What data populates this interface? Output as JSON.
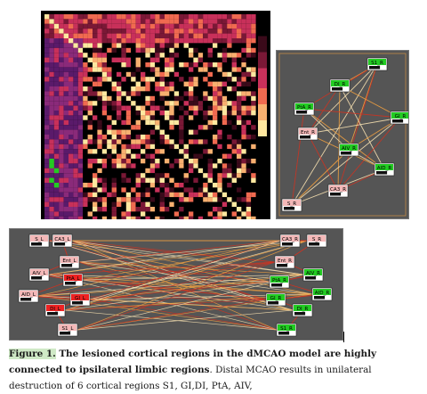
{
  "colors": {
    "panel_bg": "#555555",
    "node_green": "#22cc22",
    "node_red": "#ee2222",
    "node_pink": "#f4b8b8",
    "edge_orange": "#f0a040",
    "edge_red": "#cc3322",
    "edge_cream": "#f6e0b0",
    "matrix_low": "#000000",
    "matrix_mid": "#c8305a",
    "matrix_high": "#ffe8a0",
    "matrix_purple": "#5a1a6a"
  },
  "right_network": {
    "nodes": [
      {
        "label": "S1_R",
        "color": "green"
      },
      {
        "label": "DI_R",
        "color": "green"
      },
      {
        "label": "PtA_R",
        "color": "green"
      },
      {
        "label": "GI_R",
        "color": "green"
      },
      {
        "label": "Ent_R",
        "color": "pink"
      },
      {
        "label": "AIV_R",
        "color": "green"
      },
      {
        "label": "AID_R",
        "color": "green"
      },
      {
        "label": "CA3_R",
        "color": "pink"
      },
      {
        "label": "S_R",
        "color": "pink"
      }
    ]
  },
  "bottom_network": {
    "left_nodes": [
      {
        "label": "S_L",
        "color": "pink"
      },
      {
        "label": "CA3_L",
        "color": "pink"
      },
      {
        "label": "Ent_L",
        "color": "pink"
      },
      {
        "label": "AIV_L",
        "color": "pink"
      },
      {
        "label": "PtA_L",
        "color": "red"
      },
      {
        "label": "AID_L",
        "color": "pink"
      },
      {
        "label": "GI_L",
        "color": "red"
      },
      {
        "label": "DI_L",
        "color": "red"
      },
      {
        "label": "S1_L",
        "color": "pink"
      }
    ],
    "right_nodes": [
      {
        "label": "CA3_R",
        "color": "pink"
      },
      {
        "label": "S_R",
        "color": "pink"
      },
      {
        "label": "Ent_R",
        "color": "pink"
      },
      {
        "label": "AIV_R",
        "color": "green"
      },
      {
        "label": "PtA_R",
        "color": "green"
      },
      {
        "label": "AID_R",
        "color": "green"
      },
      {
        "label": "GI_R",
        "color": "green"
      },
      {
        "label": "DI_R",
        "color": "green"
      },
      {
        "label": "S1_R",
        "color": "green"
      }
    ]
  },
  "caption": {
    "fig_label": "Figure 1.",
    "bold_text": " The lesioned cortical regions in the dMCAO model are highly connected to ipsilateral limbic regions",
    "body_text": ". Distal MCAO results in unilateral destruction of 6 cortical regions S1, GI,DI, PtA, AIV,"
  }
}
